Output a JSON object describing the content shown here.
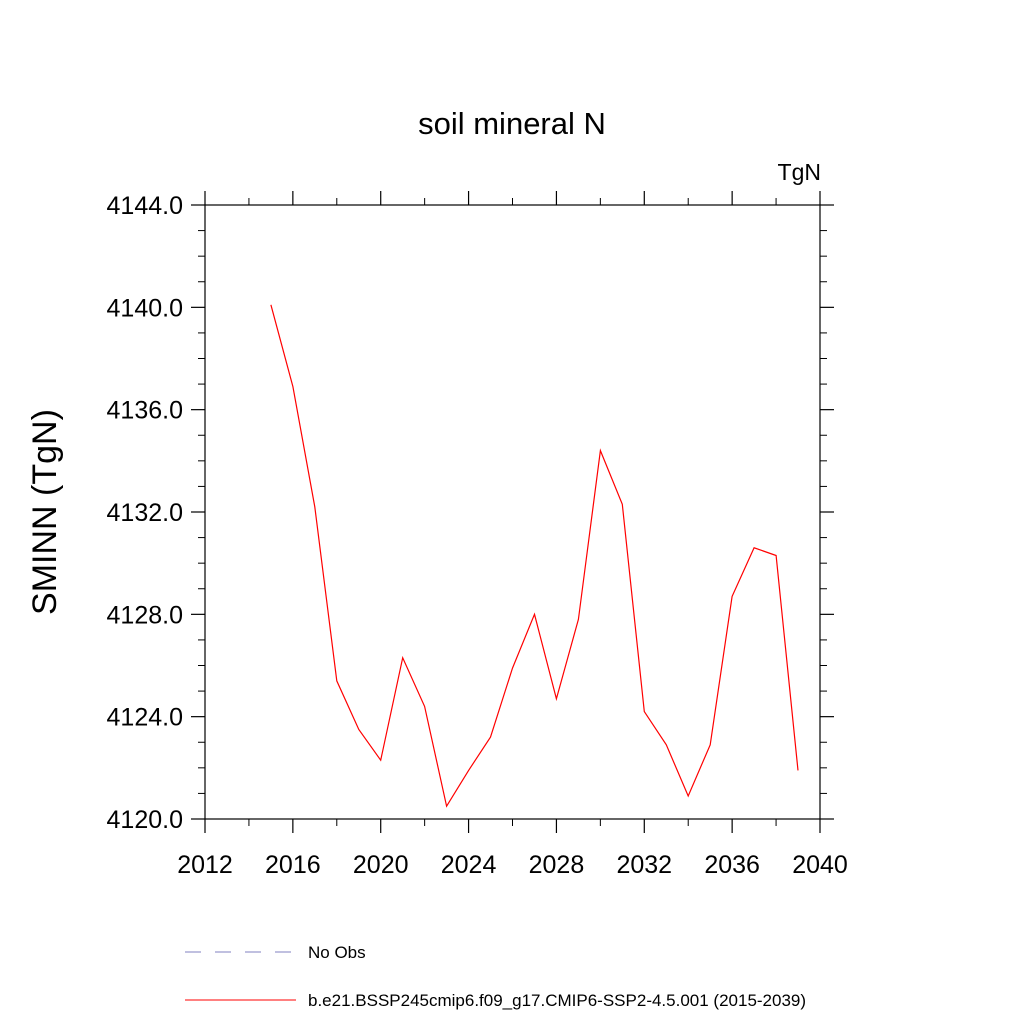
{
  "chart_data": {
    "type": "line",
    "title": "soil mineral N",
    "units": "TgN",
    "ylabel": "SMINN  (TgN)",
    "xlabel": "",
    "xlim": [
      2012,
      2040
    ],
    "ylim": [
      4120.0,
      4144.0
    ],
    "x_ticks": [
      2012,
      2016,
      2020,
      2024,
      2028,
      2032,
      2036,
      2040
    ],
    "x_tick_labels": [
      "2012",
      "2016",
      "2020",
      "2024",
      "2028",
      "2032",
      "2036",
      "2040"
    ],
    "y_ticks": [
      4120.0,
      4124.0,
      4128.0,
      4132.0,
      4136.0,
      4140.0,
      4144.0
    ],
    "y_tick_labels": [
      "4120.0",
      "4124.0",
      "4128.0",
      "4132.0",
      "4136.0",
      "4140.0",
      "4144.0"
    ],
    "grid": false,
    "legend_position": "bottom",
    "series": [
      {
        "name": "b.e21.BSSP245cmip6.f09_g17.CMIP6-SSP2-4.5.001 (2015-2039)",
        "color": "#ff0000",
        "style": "solid",
        "x": [
          2015,
          2016,
          2017,
          2018,
          2019,
          2020,
          2021,
          2022,
          2023,
          2024,
          2025,
          2026,
          2027,
          2028,
          2029,
          2030,
          2031,
          2032,
          2033,
          2034,
          2035,
          2036,
          2037,
          2038,
          2039
        ],
        "values": [
          4140.1,
          4136.9,
          4132.2,
          4125.4,
          4123.5,
          4122.3,
          4126.3,
          4124.4,
          4120.5,
          4121.9,
          4123.2,
          4125.9,
          4128.0,
          4124.7,
          4127.8,
          4134.4,
          4132.3,
          4124.2,
          4122.9,
          4120.9,
          4122.9,
          4128.7,
          4130.6,
          4130.3,
          4121.9
        ]
      }
    ],
    "legend": [
      {
        "label": "No Obs",
        "color": "#8080c0",
        "style": "dashed"
      },
      {
        "label": "b.e21.BSSP245cmip6.f09_g17.CMIP6-SSP2-4.5.001 (2015-2039)",
        "color": "#ff0000",
        "style": "solid"
      }
    ]
  }
}
